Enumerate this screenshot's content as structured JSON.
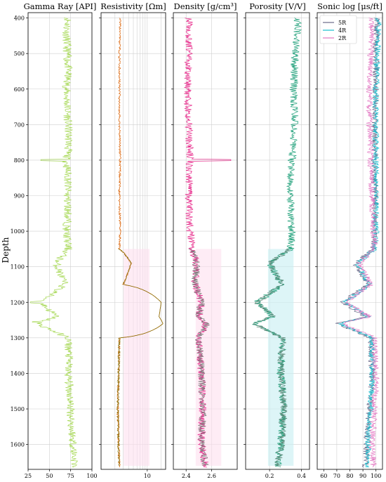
{
  "chart_data": [
    {
      "type": "line",
      "title": "Gamma Ray [API]",
      "xlim": [
        25,
        100
      ],
      "xticks": [
        "25",
        "50",
        "75",
        "100"
      ],
      "xtick_values": [
        25,
        50,
        75,
        100
      ],
      "color": "#a6d854",
      "depth_samples": [
        400,
        450,
        500,
        550,
        600,
        650,
        700,
        750,
        800,
        850,
        900,
        950,
        1000,
        1050,
        1090,
        1150,
        1200,
        1240,
        1260,
        1300,
        1350,
        1400,
        1450,
        1500,
        1550,
        1600,
        1660
      ],
      "values": [
        72,
        70,
        71,
        72,
        70,
        71,
        72,
        73,
        70,
        72,
        71,
        72,
        70,
        72,
        58,
        68,
        40,
        58,
        36,
        72,
        73,
        72,
        74,
        75,
        76,
        78,
        80
      ],
      "spikes": [
        {
          "depth": 800,
          "value": 40
        },
        {
          "depth": 1200,
          "value": 28
        },
        {
          "depth": 1255,
          "value": 30
        }
      ]
    },
    {
      "type": "line",
      "title": "Resistivity [Ωm]",
      "xscale": "log",
      "xticks": [
        "10"
      ],
      "xtick_values": [
        10
      ],
      "color": "#d95f02",
      "color_lower": "#7f6d00",
      "depth_samples": [
        400,
        500,
        600,
        700,
        800,
        900,
        1000,
        1050,
        1090,
        1150,
        1200,
        1240,
        1260,
        1300,
        1400,
        1500,
        1600,
        1660
      ],
      "values": [
        2.6,
        2.5,
        2.5,
        2.5,
        2.6,
        2.5,
        2.6,
        2.5,
        4.5,
        3.0,
        20,
        18,
        22,
        2.5,
        2.4,
        2.3,
        2.4,
        2.5
      ]
    },
    {
      "type": "line",
      "title": "Density [g/cm³]",
      "xlim": [
        2.3,
        2.8
      ],
      "xticks": [
        "2.4",
        "2.6"
      ],
      "xtick_values": [
        2.4,
        2.6
      ],
      "color": "#e7298a",
      "color_lower": "#7a7a7a",
      "depth_samples": [
        400,
        500,
        600,
        700,
        800,
        900,
        1000,
        1050,
        1090,
        1150,
        1200,
        1240,
        1260,
        1300,
        1400,
        1500,
        1600,
        1660
      ],
      "values": [
        2.42,
        2.42,
        2.41,
        2.42,
        2.43,
        2.42,
        2.43,
        2.45,
        2.48,
        2.47,
        2.52,
        2.5,
        2.56,
        2.5,
        2.52,
        2.53,
        2.52,
        2.55
      ],
      "spikes": [
        {
          "depth": 800,
          "value": 2.75
        }
      ]
    },
    {
      "type": "line",
      "title": "Porosity [V/V]",
      "xlim": [
        0.05,
        0.45
      ],
      "xticks": [
        "0.2",
        "0.4"
      ],
      "xtick_values": [
        0.2,
        0.4
      ],
      "color": "#1b9e77",
      "color_lower": "#5e8a7a",
      "depth_samples": [
        400,
        500,
        600,
        700,
        800,
        900,
        1000,
        1050,
        1090,
        1150,
        1200,
        1240,
        1260,
        1300,
        1400,
        1500,
        1600,
        1660
      ],
      "values": [
        0.38,
        0.36,
        0.35,
        0.36,
        0.34,
        0.33,
        0.34,
        0.33,
        0.2,
        0.28,
        0.12,
        0.22,
        0.1,
        0.28,
        0.27,
        0.29,
        0.27,
        0.25
      ]
    },
    {
      "type": "line",
      "title": "Sonic log [μs/ft]",
      "xlim": [
        55,
        105
      ],
      "xticks": [
        "60",
        "70",
        "80",
        "90",
        "100"
      ],
      "xtick_values": [
        60,
        70,
        80,
        90,
        100
      ],
      "legend": "top-left",
      "depth_samples": [
        400,
        500,
        600,
        700,
        800,
        900,
        1000,
        1050,
        1090,
        1150,
        1200,
        1240,
        1260,
        1300,
        1400,
        1500,
        1600,
        1660
      ],
      "series": [
        {
          "name": "5R",
          "color": "#6a6a8a",
          "values": [
            101,
            100,
            100,
            99,
            99,
            99,
            99,
            98,
            84,
            94,
            74,
            92,
            70,
            96,
            97,
            95,
            93,
            92
          ]
        },
        {
          "name": "4R",
          "color": "#17becf",
          "values": [
            102,
            101,
            100,
            100,
            100,
            100,
            100,
            99,
            86,
            95,
            76,
            94,
            72,
            97,
            97,
            96,
            94,
            93
          ]
        },
        {
          "name": "2R",
          "color": "#e377c2",
          "values": [
            97,
            96,
            95,
            95,
            96,
            97,
            98,
            99,
            87,
            96,
            77,
            95,
            74,
            99,
            100,
            99,
            97,
            98
          ]
        }
      ]
    }
  ],
  "y_axis": {
    "label": "Depth",
    "ylim": [
      385,
      1670
    ],
    "ticks": [
      "400",
      "500",
      "600",
      "700",
      "800",
      "900",
      "1000",
      "1100",
      "1200",
      "1300",
      "1400",
      "1500",
      "1600"
    ],
    "tick_values": [
      400,
      500,
      600,
      700,
      800,
      900,
      1000,
      1100,
      1200,
      1300,
      1400,
      1500,
      1600
    ]
  }
}
